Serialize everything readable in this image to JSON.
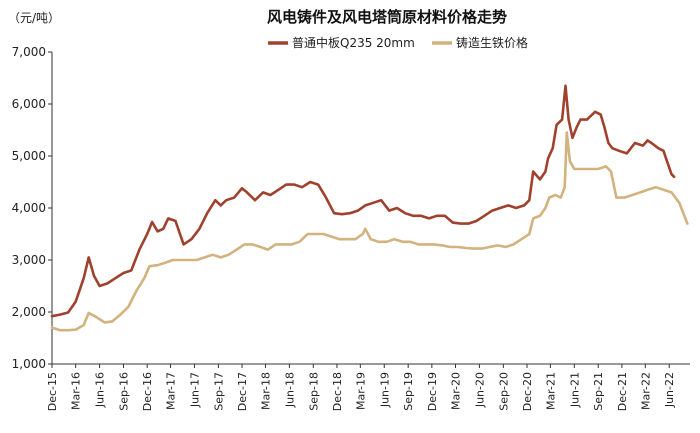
{
  "chart_data": {
    "type": "line",
    "title": "风电铸件及风电塔筒原材料价格走势",
    "y_unit_label": "（元/吨）",
    "ylim": [
      1000,
      7000
    ],
    "y_ticks": [
      "1,000",
      "2,000",
      "3,000",
      "4,000",
      "5,000",
      "6,000",
      "7,000"
    ],
    "y_tick_values": [
      1000,
      2000,
      3000,
      4000,
      5000,
      6000,
      7000
    ],
    "x_range": [
      "2015-12-01",
      "2022-08-20"
    ],
    "x_ticks": [
      "Dec-15",
      "Mar-16",
      "Jun-16",
      "Sep-16",
      "Dec-16",
      "Mar-17",
      "Jun-17",
      "Sep-17",
      "Dec-17",
      "Mar-18",
      "Jun-18",
      "Sep-18",
      "Dec-18",
      "Mar-19",
      "Jun-19",
      "Sep-19",
      "Dec-19",
      "Mar-20",
      "Jun-20",
      "Sep-20",
      "Dec-20",
      "Mar-21",
      "Jun-21",
      "Sep-21",
      "Dec-21",
      "Mar-22",
      "Jun-22"
    ],
    "grid": false,
    "legend_position": "top-center",
    "series": [
      {
        "name": "普通中板Q235 20mm",
        "color": "#A0412E",
        "points": [
          [
            "2015-12-01",
            1920
          ],
          [
            "2016-01-01",
            1950
          ],
          [
            "2016-02-01",
            1990
          ],
          [
            "2016-03-01",
            2200
          ],
          [
            "2016-04-01",
            2650
          ],
          [
            "2016-04-20",
            3050
          ],
          [
            "2016-05-10",
            2700
          ],
          [
            "2016-06-01",
            2500
          ],
          [
            "2016-07-01",
            2550
          ],
          [
            "2016-08-01",
            2650
          ],
          [
            "2016-09-01",
            2750
          ],
          [
            "2016-10-01",
            2800
          ],
          [
            "2016-11-01",
            3200
          ],
          [
            "2016-12-01",
            3500
          ],
          [
            "2016-12-20",
            3730
          ],
          [
            "2017-01-10",
            3550
          ],
          [
            "2017-02-01",
            3600
          ],
          [
            "2017-02-20",
            3800
          ],
          [
            "2017-03-20",
            3750
          ],
          [
            "2017-04-20",
            3300
          ],
          [
            "2017-05-20",
            3400
          ],
          [
            "2017-06-20",
            3600
          ],
          [
            "2017-07-20",
            3900
          ],
          [
            "2017-08-20",
            4150
          ],
          [
            "2017-09-10",
            4050
          ],
          [
            "2017-10-01",
            4150
          ],
          [
            "2017-11-01",
            4200
          ],
          [
            "2017-12-01",
            4380
          ],
          [
            "2017-12-20",
            4300
          ],
          [
            "2018-01-20",
            4150
          ],
          [
            "2018-02-20",
            4300
          ],
          [
            "2018-03-20",
            4250
          ],
          [
            "2018-04-20",
            4350
          ],
          [
            "2018-05-20",
            4450
          ],
          [
            "2018-06-20",
            4450
          ],
          [
            "2018-07-20",
            4400
          ],
          [
            "2018-08-20",
            4500
          ],
          [
            "2018-09-20",
            4450
          ],
          [
            "2018-10-20",
            4200
          ],
          [
            "2018-11-20",
            3900
          ],
          [
            "2018-12-20",
            3880
          ],
          [
            "2019-01-20",
            3900
          ],
          [
            "2019-02-20",
            3950
          ],
          [
            "2019-03-20",
            4050
          ],
          [
            "2019-04-20",
            4100
          ],
          [
            "2019-05-20",
            4150
          ],
          [
            "2019-06-20",
            3950
          ],
          [
            "2019-07-20",
            4000
          ],
          [
            "2019-08-20",
            3900
          ],
          [
            "2019-09-20",
            3850
          ],
          [
            "2019-10-20",
            3850
          ],
          [
            "2019-11-20",
            3800
          ],
          [
            "2019-12-20",
            3850
          ],
          [
            "2020-01-20",
            3850
          ],
          [
            "2020-02-20",
            3720
          ],
          [
            "2020-03-20",
            3700
          ],
          [
            "2020-04-20",
            3700
          ],
          [
            "2020-05-20",
            3750
          ],
          [
            "2020-06-20",
            3850
          ],
          [
            "2020-07-20",
            3950
          ],
          [
            "2020-08-20",
            4000
          ],
          [
            "2020-09-20",
            4050
          ],
          [
            "2020-10-20",
            4000
          ],
          [
            "2020-11-20",
            4050
          ],
          [
            "2020-12-10",
            4150
          ],
          [
            "2020-12-25",
            4700
          ],
          [
            "2021-01-20",
            4550
          ],
          [
            "2021-02-10",
            4700
          ],
          [
            "2021-02-20",
            4950
          ],
          [
            "2021-03-10",
            5150
          ],
          [
            "2021-03-25",
            5600
          ],
          [
            "2021-04-15",
            5700
          ],
          [
            "2021-04-28",
            6350
          ],
          [
            "2021-05-10",
            5700
          ],
          [
            "2021-05-25",
            5350
          ],
          [
            "2021-06-10",
            5550
          ],
          [
            "2021-06-25",
            5700
          ],
          [
            "2021-07-20",
            5700
          ],
          [
            "2021-08-20",
            5850
          ],
          [
            "2021-09-10",
            5800
          ],
          [
            "2021-09-25",
            5550
          ],
          [
            "2021-10-10",
            5250
          ],
          [
            "2021-10-25",
            5150
          ],
          [
            "2021-11-20",
            5100
          ],
          [
            "2021-12-20",
            5050
          ],
          [
            "2022-01-20",
            5250
          ],
          [
            "2022-02-20",
            5200
          ],
          [
            "2022-03-10",
            5300
          ],
          [
            "2022-03-25",
            5250
          ],
          [
            "2022-04-20",
            5150
          ],
          [
            "2022-05-10",
            5100
          ],
          [
            "2022-05-20",
            4950
          ],
          [
            "2022-06-10",
            4650
          ],
          [
            "2022-06-20",
            4600
          ]
        ]
      },
      {
        "name": "铸造生铁价格",
        "color": "#D2B27E",
        "points": [
          [
            "2015-12-01",
            1700
          ],
          [
            "2016-01-01",
            1650
          ],
          [
            "2016-02-01",
            1650
          ],
          [
            "2016-03-01",
            1660
          ],
          [
            "2016-04-01",
            1750
          ],
          [
            "2016-04-20",
            1980
          ],
          [
            "2016-05-20",
            1900
          ],
          [
            "2016-06-20",
            1800
          ],
          [
            "2016-07-20",
            1820
          ],
          [
            "2016-08-20",
            1950
          ],
          [
            "2016-09-20",
            2100
          ],
          [
            "2016-10-20",
            2400
          ],
          [
            "2016-11-20",
            2650
          ],
          [
            "2016-12-10",
            2880
          ],
          [
            "2017-01-10",
            2900
          ],
          [
            "2017-02-10",
            2950
          ],
          [
            "2017-03-10",
            3000
          ],
          [
            "2017-04-10",
            3000
          ],
          [
            "2017-05-10",
            3000
          ],
          [
            "2017-06-10",
            3000
          ],
          [
            "2017-07-10",
            3050
          ],
          [
            "2017-08-10",
            3100
          ],
          [
            "2017-09-10",
            3050
          ],
          [
            "2017-10-10",
            3100
          ],
          [
            "2017-11-10",
            3200
          ],
          [
            "2017-12-10",
            3300
          ],
          [
            "2018-01-10",
            3300
          ],
          [
            "2018-02-10",
            3250
          ],
          [
            "2018-03-10",
            3200
          ],
          [
            "2018-04-10",
            3300
          ],
          [
            "2018-05-10",
            3300
          ],
          [
            "2018-06-10",
            3300
          ],
          [
            "2018-07-10",
            3350
          ],
          [
            "2018-08-10",
            3500
          ],
          [
            "2018-09-10",
            3500
          ],
          [
            "2018-10-10",
            3500
          ],
          [
            "2018-11-10",
            3450
          ],
          [
            "2018-12-10",
            3400
          ],
          [
            "2019-01-10",
            3400
          ],
          [
            "2019-02-10",
            3400
          ],
          [
            "2019-03-10",
            3500
          ],
          [
            "2019-03-20",
            3600
          ],
          [
            "2019-04-10",
            3400
          ],
          [
            "2019-05-10",
            3350
          ],
          [
            "2019-06-10",
            3350
          ],
          [
            "2019-07-10",
            3400
          ],
          [
            "2019-08-10",
            3350
          ],
          [
            "2019-09-10",
            3350
          ],
          [
            "2019-10-10",
            3300
          ],
          [
            "2019-11-10",
            3300
          ],
          [
            "2019-12-10",
            3300
          ],
          [
            "2020-01-10",
            3280
          ],
          [
            "2020-02-10",
            3250
          ],
          [
            "2020-03-10",
            3250
          ],
          [
            "2020-04-10",
            3230
          ],
          [
            "2020-05-10",
            3220
          ],
          [
            "2020-06-10",
            3220
          ],
          [
            "2020-07-10",
            3250
          ],
          [
            "2020-08-10",
            3280
          ],
          [
            "2020-09-10",
            3250
          ],
          [
            "2020-10-10",
            3300
          ],
          [
            "2020-11-10",
            3400
          ],
          [
            "2020-12-10",
            3500
          ],
          [
            "2020-12-25",
            3800
          ],
          [
            "2021-01-20",
            3850
          ],
          [
            "2021-02-10",
            4000
          ],
          [
            "2021-02-25",
            4200
          ],
          [
            "2021-03-20",
            4250
          ],
          [
            "2021-04-10",
            4200
          ],
          [
            "2021-04-25",
            4400
          ],
          [
            "2021-05-03",
            5450
          ],
          [
            "2021-05-15",
            4900
          ],
          [
            "2021-06-01",
            4750
          ],
          [
            "2021-07-01",
            4750
          ],
          [
            "2021-08-01",
            4750
          ],
          [
            "2021-09-01",
            4750
          ],
          [
            "2021-10-01",
            4800
          ],
          [
            "2021-10-20",
            4700
          ],
          [
            "2021-11-10",
            4200
          ],
          [
            "2021-12-10",
            4200
          ],
          [
            "2022-01-10",
            4250
          ],
          [
            "2022-02-10",
            4300
          ],
          [
            "2022-03-10",
            4350
          ],
          [
            "2022-04-10",
            4400
          ],
          [
            "2022-05-10",
            4350
          ],
          [
            "2022-06-10",
            4300
          ],
          [
            "2022-07-10",
            4100
          ],
          [
            "2022-08-10",
            3700
          ]
        ]
      }
    ]
  }
}
